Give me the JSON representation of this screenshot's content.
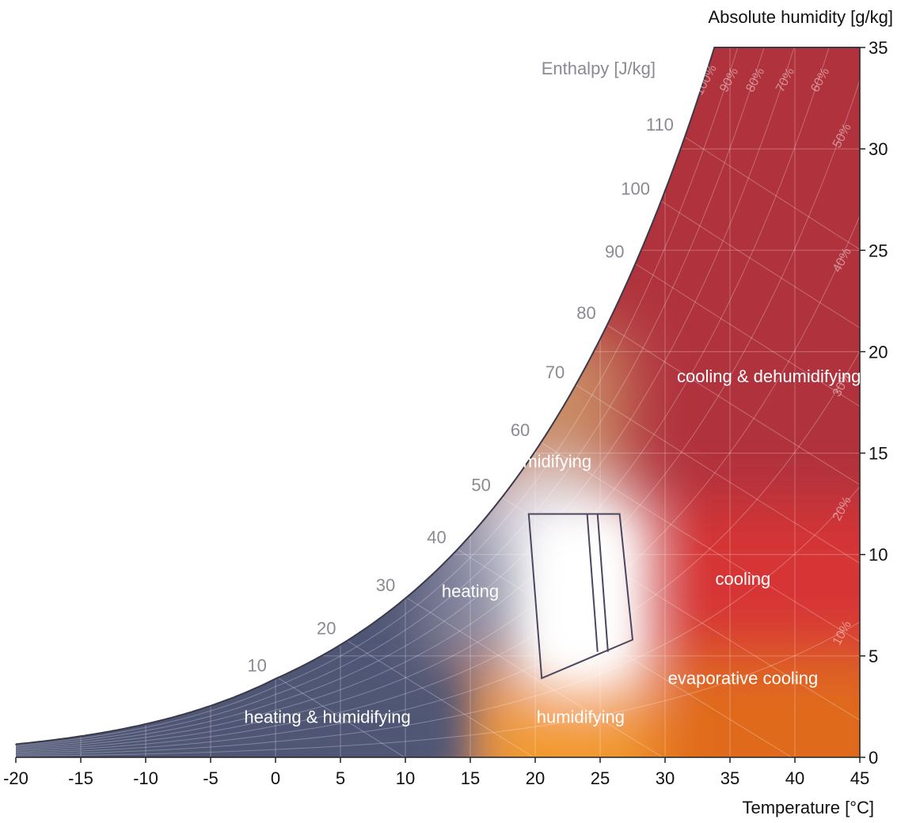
{
  "chart_data": {
    "type": "psychrometric",
    "xlabel": "Temperature [°C]",
    "ylabel": "Absolute humidity [g/kg]",
    "enthalpy_label": "Enthalpy [J/kg]",
    "xlim": [
      -20,
      45
    ],
    "ylim": [
      0,
      35
    ],
    "x_ticks": [
      "-20",
      "-15",
      "-10",
      "-5",
      "0",
      "5",
      "10",
      "15",
      "20",
      "25",
      "30",
      "35",
      "40",
      "45"
    ],
    "y_ticks": [
      "0",
      "5",
      "10",
      "15",
      "20",
      "25",
      "30",
      "35"
    ],
    "enthalpy_ticks": [
      "10",
      "20",
      "30",
      "40",
      "50",
      "60",
      "70",
      "80",
      "90",
      "100",
      "110"
    ],
    "relative_humidity_labels": [
      "10%",
      "20%",
      "30%",
      "40%",
      "50%",
      "60%",
      "70%",
      "80%",
      "90%",
      "100%"
    ],
    "regions": [
      {
        "name": "heating & humidifying",
        "color": "#4f5675"
      },
      {
        "name": "heating",
        "color": "#8a8ba4"
      },
      {
        "name": "humidifying",
        "color": "#f29a2e"
      },
      {
        "name": "evaporative cooling",
        "color": "#e06b1c"
      },
      {
        "name": "cooling",
        "color": "#d73535"
      },
      {
        "name": "dehumidifying",
        "color": "#c98a63"
      },
      {
        "name": "cooling & dehumidifying",
        "color": "#b0323d"
      }
    ],
    "comfort_zone": {
      "outline": [
        [
          19.5,
          12
        ],
        [
          26.5,
          12
        ],
        [
          27.5,
          5.8
        ],
        [
          20.5,
          3.9
        ]
      ],
      "inner_lines": [
        [
          [
            24,
            12
          ],
          [
            24.8,
            5.2
          ]
        ],
        [
          [
            24.8,
            12
          ],
          [
            25.6,
            5.2
          ]
        ]
      ]
    },
    "grid": true
  }
}
